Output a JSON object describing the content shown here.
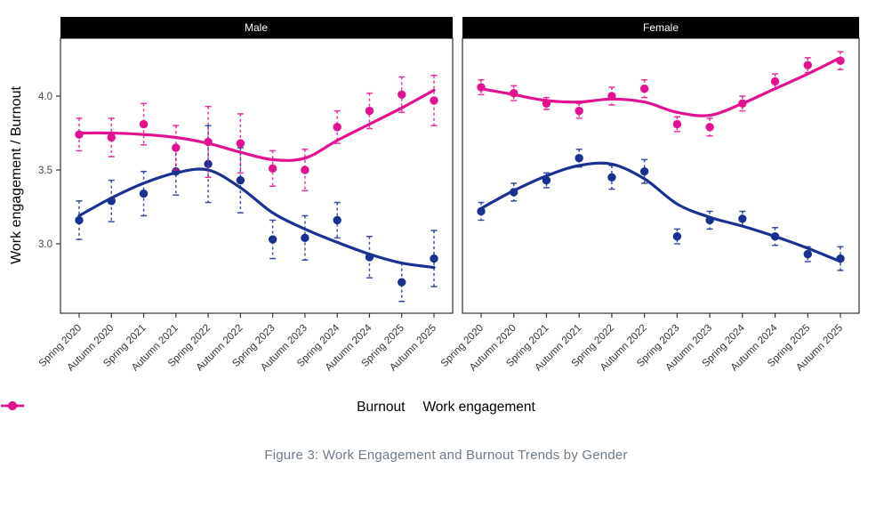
{
  "figure": {
    "y_axis_title": "Work engagement / Burnout",
    "caption": "Figure 3: Work Engagement and Burnout Trends by Gender"
  },
  "legend": {
    "items": [
      {
        "label": "Burnout",
        "color": "#1B3191"
      },
      {
        "label": "Work engagement",
        "color": "#E21190"
      }
    ]
  },
  "chart_data": {
    "type": "scatter",
    "facets": [
      "Male",
      "Female"
    ],
    "categories": [
      "Spring 2020",
      "Autumn 2020",
      "Spring 2021",
      "Autumn 2021",
      "Spring 2022",
      "Autumn 2022",
      "Spring 2023",
      "Autumn 2023",
      "Spring 2024",
      "Autumn 2024",
      "Spring 2025",
      "Autumn 2025"
    ],
    "ylabel": "Work engagement / Burnout",
    "yticks": [
      3.0,
      3.5,
      4.0
    ],
    "ylim": [
      2.53,
      4.39
    ],
    "grid": false,
    "legend_position": "bottom",
    "point_style": "filled-circle-with-dashed-error-bars",
    "line_style": "loess-smooth",
    "series": [
      {
        "name": "Burnout",
        "facet": "Male",
        "color": "#1B3191",
        "values": [
          3.16,
          3.29,
          3.34,
          3.49,
          3.54,
          3.43,
          3.03,
          3.04,
          3.16,
          2.91,
          2.74,
          2.9
        ],
        "errors": [
          0.13,
          0.14,
          0.15,
          0.16,
          0.26,
          0.22,
          0.13,
          0.15,
          0.12,
          0.14,
          0.13,
          0.19
        ],
        "trend": [
          3.19,
          3.31,
          3.41,
          3.48,
          3.5,
          3.38,
          3.21,
          3.1,
          3.01,
          2.93,
          2.87,
          2.84
        ]
      },
      {
        "name": "Work engagement",
        "facet": "Male",
        "color": "#E21190",
        "values": [
          3.74,
          3.72,
          3.81,
          3.65,
          3.69,
          3.68,
          3.51,
          3.5,
          3.79,
          3.9,
          4.01,
          3.97
        ],
        "errors": [
          0.11,
          0.13,
          0.14,
          0.15,
          0.24,
          0.2,
          0.12,
          0.14,
          0.11,
          0.12,
          0.12,
          0.17
        ],
        "trend": [
          3.75,
          3.75,
          3.74,
          3.72,
          3.68,
          3.62,
          3.57,
          3.58,
          3.7,
          3.81,
          3.92,
          4.04
        ]
      },
      {
        "name": "Burnout",
        "facet": "Female",
        "color": "#1B3191",
        "values": [
          3.22,
          3.35,
          3.43,
          3.58,
          3.45,
          3.49,
          3.05,
          3.16,
          3.17,
          3.05,
          2.93,
          2.9
        ],
        "errors": [
          0.06,
          0.06,
          0.05,
          0.06,
          0.08,
          0.08,
          0.05,
          0.06,
          0.05,
          0.06,
          0.05,
          0.08
        ],
        "trend": [
          3.24,
          3.36,
          3.46,
          3.53,
          3.54,
          3.44,
          3.27,
          3.18,
          3.12,
          3.05,
          2.97,
          2.88
        ]
      },
      {
        "name": "Work engagement",
        "facet": "Female",
        "color": "#E21190",
        "values": [
          4.06,
          4.02,
          3.95,
          3.9,
          4.0,
          4.05,
          3.81,
          3.79,
          3.95,
          4.1,
          4.21,
          4.24
        ],
        "errors": [
          0.05,
          0.05,
          0.04,
          0.05,
          0.06,
          0.06,
          0.05,
          0.06,
          0.05,
          0.05,
          0.05,
          0.06
        ],
        "trend": [
          4.05,
          4.01,
          3.97,
          3.96,
          3.98,
          3.96,
          3.89,
          3.87,
          3.95,
          4.05,
          4.15,
          4.26
        ]
      }
    ]
  }
}
